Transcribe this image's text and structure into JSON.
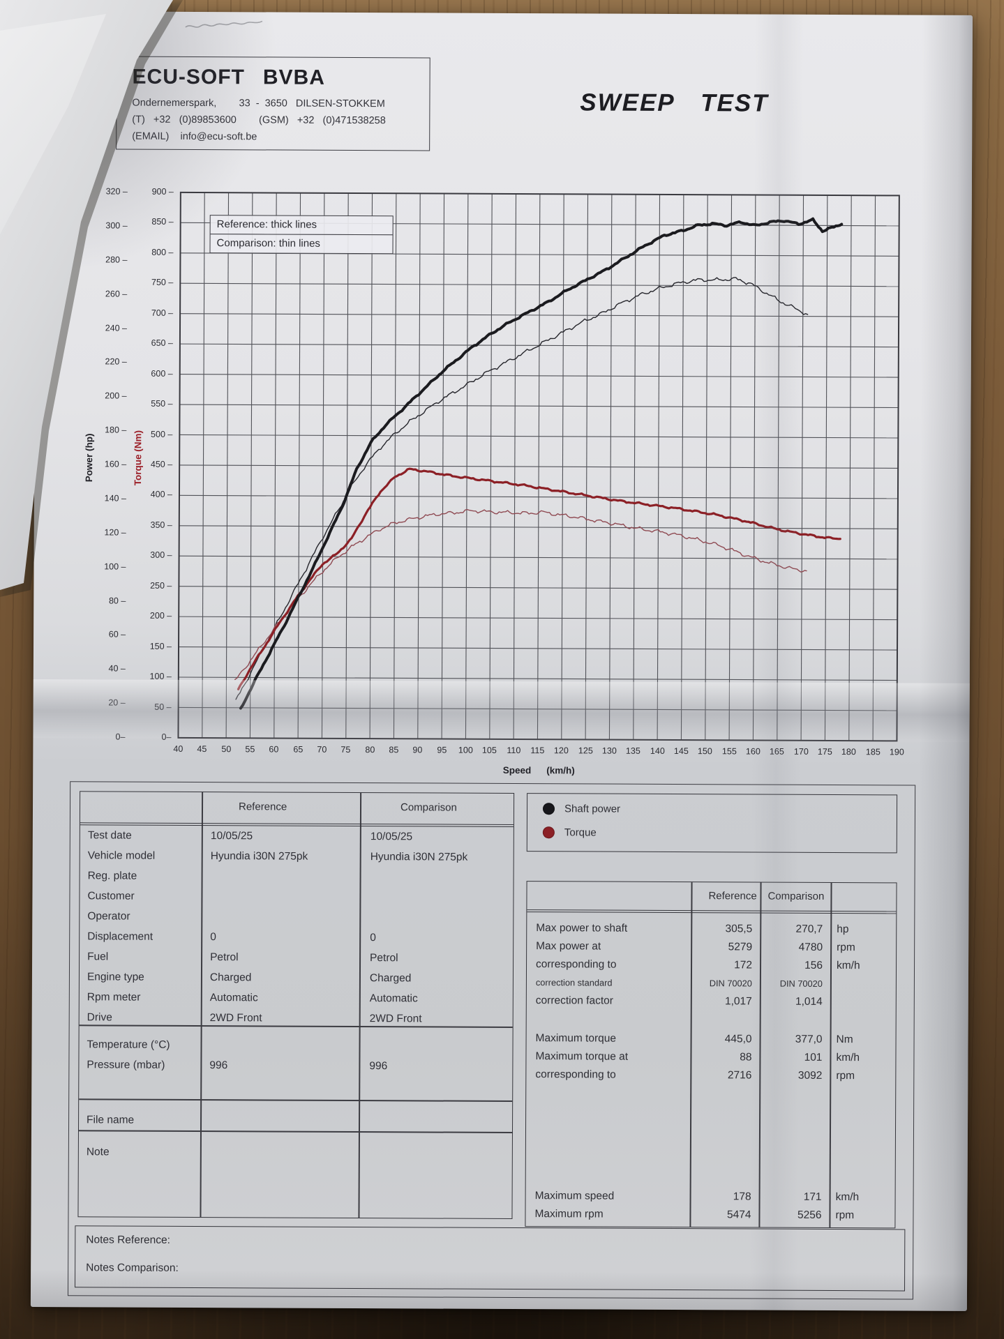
{
  "header": {
    "company_name": "ECU-SOFT",
    "company_suffix": "BVBA",
    "address_line": "Ondernemerspark,        33  -  3650   DILSEN-STOKKEM",
    "phone_line": "(T)   +32   (0)89853600        (GSM)   +32   (0)471538258",
    "email_line": "(EMAIL)    info@ecu-soft.be"
  },
  "title": "SWEEP TEST",
  "chart": {
    "legend_reference": "Reference: thick lines",
    "legend_comparison": "Comparison: thin lines",
    "power_axis_title": "Power (hp)",
    "torque_axis_title": "Torque (Nm)",
    "x_axis_title": "Speed",
    "x_axis_unit": "(km/h)"
  },
  "chart_data": {
    "type": "line",
    "title": "Sweep test dyno run — power and torque vs speed",
    "grid": true,
    "x_axis": {
      "label": "Speed",
      "unit": "km/h",
      "min": 40,
      "max": 190,
      "step": 5
    },
    "y_axis_power": {
      "label": "Power (hp)",
      "min": 0,
      "max": 320,
      "step": 20
    },
    "y_axis_torque": {
      "label": "Torque (Nm)",
      "min": 0,
      "max": 900,
      "step": 50
    },
    "series": [
      {
        "name": "Comparison shaft power",
        "axis": "power",
        "line": "thin",
        "color": "#26262c",
        "points": [
          [
            52,
            22
          ],
          [
            55,
            38
          ],
          [
            58,
            54
          ],
          [
            61,
            70
          ],
          [
            64,
            86
          ],
          [
            67,
            102
          ],
          [
            70,
            118
          ],
          [
            73,
            133
          ],
          [
            76,
            148
          ],
          [
            79,
            161
          ],
          [
            82,
            171
          ],
          [
            85,
            179
          ],
          [
            88,
            186
          ],
          [
            91,
            192
          ],
          [
            94,
            198
          ],
          [
            97,
            203
          ],
          [
            100,
            208
          ],
          [
            104,
            215
          ],
          [
            108,
            221
          ],
          [
            112,
            227
          ],
          [
            116,
            233
          ],
          [
            120,
            239
          ],
          [
            124,
            245
          ],
          [
            128,
            250
          ],
          [
            132,
            256
          ],
          [
            136,
            261
          ],
          [
            140,
            265
          ],
          [
            144,
            268
          ],
          [
            148,
            270
          ],
          [
            152,
            270
          ],
          [
            156,
            270.7
          ],
          [
            159,
            268
          ],
          [
            162,
            263
          ],
          [
            165,
            258
          ],
          [
            168,
            254
          ],
          [
            171,
            250
          ]
        ]
      },
      {
        "name": "Comparison torque",
        "axis": "torque",
        "line": "thin",
        "color": "#90495200",
        "color_real": "#8f4a52",
        "points": [
          [
            51.8,
            94
          ],
          [
            55,
            128
          ],
          [
            58,
            160
          ],
          [
            61,
            192
          ],
          [
            64,
            222
          ],
          [
            67,
            250
          ],
          [
            70,
            276
          ],
          [
            73,
            298
          ],
          [
            76,
            316
          ],
          [
            79,
            332
          ],
          [
            82,
            346
          ],
          [
            85,
            356
          ],
          [
            88,
            362
          ],
          [
            91,
            367
          ],
          [
            94,
            371
          ],
          [
            97,
            373
          ],
          [
            101,
            377
          ],
          [
            105,
            375
          ],
          [
            109,
            374
          ],
          [
            113,
            373
          ],
          [
            116,
            375
          ],
          [
            119,
            371
          ],
          [
            122,
            368
          ],
          [
            125,
            364
          ],
          [
            128,
            360
          ],
          [
            131,
            356
          ],
          [
            134,
            351
          ],
          [
            137,
            347
          ],
          [
            140,
            344
          ],
          [
            143,
            340
          ],
          [
            146,
            335
          ],
          [
            149,
            329
          ],
          [
            152,
            323
          ],
          [
            155,
            315
          ],
          [
            158,
            306
          ],
          [
            161,
            298
          ],
          [
            164,
            291
          ],
          [
            167,
            285
          ],
          [
            169,
            282
          ],
          [
            171,
            280
          ]
        ]
      },
      {
        "name": "Reference torque",
        "axis": "torque",
        "line": "thick",
        "color": "#8c2026",
        "points": [
          [
            52.5,
            80
          ],
          [
            55,
            115
          ],
          [
            58,
            152
          ],
          [
            61,
            190
          ],
          [
            64,
            225
          ],
          [
            67,
            258
          ],
          [
            70,
            288
          ],
          [
            73,
            305
          ],
          [
            76,
            330
          ],
          [
            79,
            372
          ],
          [
            82,
            408
          ],
          [
            85,
            432
          ],
          [
            88,
            445
          ],
          [
            91,
            442
          ],
          [
            94,
            438
          ],
          [
            97,
            434
          ],
          [
            100,
            431
          ],
          [
            104,
            427
          ],
          [
            108,
            423
          ],
          [
            112,
            419
          ],
          [
            116,
            414
          ],
          [
            120,
            409
          ],
          [
            124,
            404
          ],
          [
            128,
            399
          ],
          [
            132,
            394
          ],
          [
            136,
            390
          ],
          [
            140,
            386
          ],
          [
            144,
            382
          ],
          [
            148,
            377
          ],
          [
            152,
            372
          ],
          [
            155,
            367
          ],
          [
            158,
            362
          ],
          [
            161,
            356
          ],
          [
            164,
            350
          ],
          [
            167,
            345
          ],
          [
            170,
            341
          ],
          [
            173,
            337
          ],
          [
            176,
            334
          ],
          [
            178,
            333
          ]
        ]
      },
      {
        "name": "Reference shaft power",
        "axis": "power",
        "line": "thick",
        "color": "#1b1b1f",
        "points": [
          [
            53,
            17
          ],
          [
            56,
            34
          ],
          [
            59,
            50
          ],
          [
            62,
            66
          ],
          [
            65,
            83
          ],
          [
            68,
            100
          ],
          [
            71,
            118
          ],
          [
            74,
            136
          ],
          [
            77,
            158
          ],
          [
            80,
            174
          ],
          [
            83,
            184
          ],
          [
            86,
            192
          ],
          [
            89,
            200
          ],
          [
            92,
            208
          ],
          [
            95,
            216
          ],
          [
            98,
            223
          ],
          [
            101,
            230
          ],
          [
            105,
            238
          ],
          [
            109,
            245
          ],
          [
            113,
            251
          ],
          [
            117,
            257
          ],
          [
            121,
            264
          ],
          [
            125,
            270
          ],
          [
            129,
            276
          ],
          [
            133,
            283
          ],
          [
            137,
            290
          ],
          [
            141,
            296
          ],
          [
            145,
            299
          ],
          [
            148,
            302
          ],
          [
            151,
            303
          ],
          [
            154,
            302
          ],
          [
            157,
            304
          ],
          [
            160,
            302
          ],
          [
            163,
            304
          ],
          [
            166,
            305
          ],
          [
            169,
            303
          ],
          [
            172,
            305.5
          ],
          [
            174,
            299
          ],
          [
            176,
            301
          ],
          [
            178,
            303
          ]
        ]
      }
    ]
  },
  "series_legend": {
    "items": [
      {
        "label": "Shaft power",
        "color": "#17171b"
      },
      {
        "label": "Torque",
        "color": "#8c2026"
      }
    ]
  },
  "info_table": {
    "headers": {
      "reference": "Reference",
      "comparison": "Comparison"
    },
    "groups": [
      {
        "rows": [
          {
            "label": "Test date",
            "ref": "10/05/25",
            "comp": "10/05/25"
          },
          {
            "label": "Vehicle model",
            "ref": "Hyundia i30N 275pk",
            "comp": "Hyundia i30N 275pk"
          },
          {
            "label": "Reg. plate",
            "ref": "",
            "comp": ""
          },
          {
            "label": "Customer",
            "ref": "",
            "comp": ""
          },
          {
            "label": "Operator",
            "ref": "",
            "comp": ""
          },
          {
            "label": "Displacement",
            "ref": "0",
            "comp": "0"
          },
          {
            "label": "Fuel",
            "ref": "Petrol",
            "comp": "Petrol"
          },
          {
            "label": "Engine type",
            "ref": "Charged",
            "comp": "Charged"
          },
          {
            "label": "Rpm meter",
            "ref": "Automatic",
            "comp": "Automatic"
          },
          {
            "label": "Drive",
            "ref": "2WD Front",
            "comp": "2WD Front"
          }
        ]
      },
      {
        "rows": [
          {
            "label": "Temperature (°C)",
            "ref": "",
            "comp": ""
          },
          {
            "label": "Pressure (mbar)",
            "ref": "996",
            "comp": "996"
          }
        ]
      },
      {
        "rows": [
          {
            "label": "File name",
            "ref": "",
            "comp": ""
          }
        ]
      },
      {
        "rows": [
          {
            "label": "Note",
            "ref": "",
            "comp": ""
          }
        ]
      }
    ]
  },
  "results_table": {
    "headers": {
      "reference": "Reference",
      "comparison": "Comparison"
    },
    "groups": [
      {
        "rows": [
          {
            "label": "Max power to shaft",
            "ref": "305,5",
            "comp": "270,7",
            "unit": "hp"
          },
          {
            "label": "Max power at",
            "ref": "5279",
            "comp": "4780",
            "unit": "rpm"
          },
          {
            "label": "corresponding to",
            "ref": "172",
            "comp": "156",
            "unit": "km/h"
          },
          {
            "label": "correction standard",
            "ref": "DIN 70020",
            "comp": "DIN 70020",
            "unit": "",
            "small": true
          },
          {
            "label": "correction factor",
            "ref": "1,017",
            "comp": "1,014",
            "unit": ""
          }
        ]
      },
      {
        "rows": [
          {
            "label": "Maximum torque",
            "ref": "445,0",
            "comp": "377,0",
            "unit": "Nm"
          },
          {
            "label": "Maximum torque at",
            "ref": "88",
            "comp": "101",
            "unit": "km/h"
          },
          {
            "label": "corresponding to",
            "ref": "2716",
            "comp": "3092",
            "unit": "rpm"
          }
        ]
      },
      {
        "rows": [
          {
            "label": "Maximum speed",
            "ref": "178",
            "comp": "171",
            "unit": "km/h"
          },
          {
            "label": "Maximum rpm",
            "ref": "5474",
            "comp": "5256",
            "unit": "rpm"
          }
        ]
      }
    ]
  },
  "notes": {
    "reference_label": "Notes Reference:",
    "comparison_label": "Notes Comparison:"
  }
}
